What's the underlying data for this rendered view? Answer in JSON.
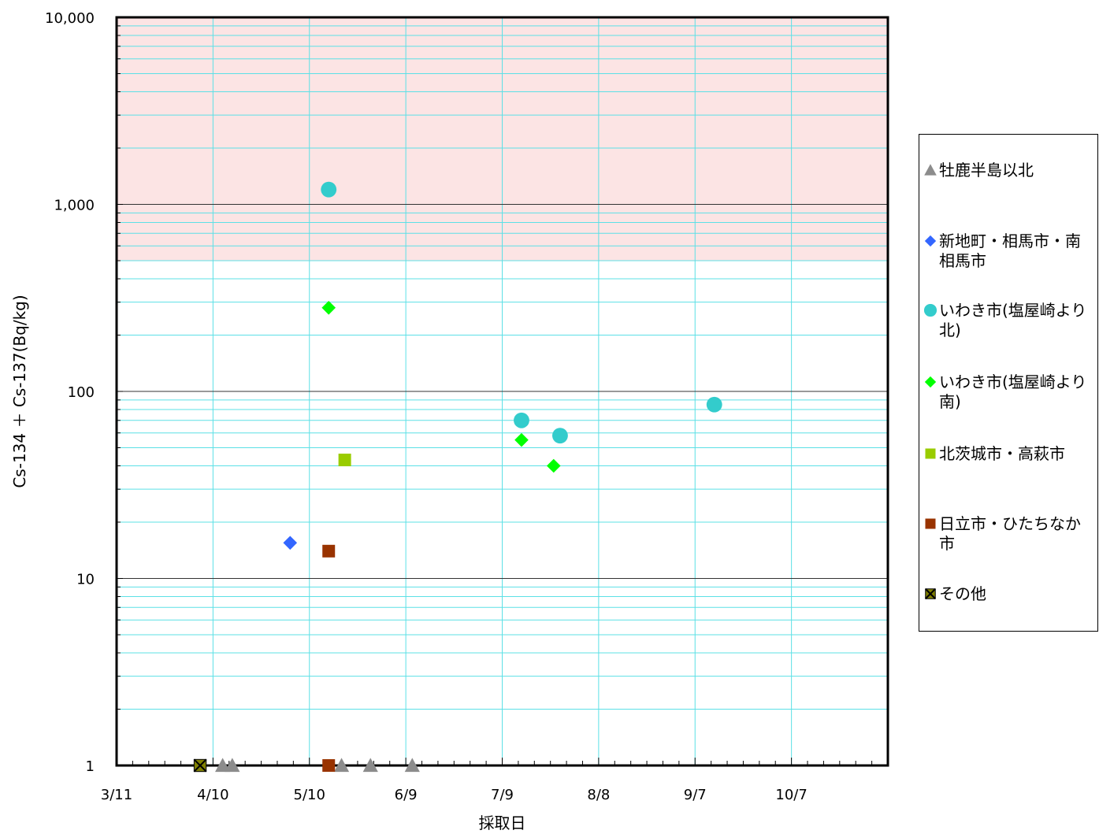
{
  "chart_data": {
    "type": "scatter",
    "xlabel": "採取日",
    "ylabel": "Cs-134 ＋ Cs-137(Bq/kg)",
    "y_scale": "log",
    "ylim": [
      1,
      10000
    ],
    "xlim": [
      "2011-03-11",
      "2011-11-06"
    ],
    "x_ticks": [
      "3/11",
      "4/10",
      "5/10",
      "6/9",
      "7/9",
      "8/8",
      "9/7",
      "10/7"
    ],
    "y_ticks": [
      "1",
      "10",
      "100",
      "1,000",
      "10,000"
    ],
    "y_tick_values": [
      1,
      10,
      100,
      1000,
      10000
    ],
    "grid": true,
    "shaded_region": {
      "y_from": 500,
      "y_to": 10000,
      "color": "#fce4e4"
    },
    "legend_position": "right",
    "series": [
      {
        "name": "牡鹿半島以北",
        "marker": "triangle",
        "color": "#8c8c8c",
        "points": [
          [
            "2011-04-13",
            1
          ],
          [
            "2011-04-16",
            1
          ],
          [
            "2011-05-20",
            1
          ],
          [
            "2011-05-29",
            1
          ],
          [
            "2011-06-11",
            1
          ]
        ]
      },
      {
        "name": "新地町・相馬市・南相馬市",
        "marker": "diamond",
        "color": "#3366ff",
        "points": [
          [
            "2011-05-04",
            15.5
          ]
        ]
      },
      {
        "name": "いわき市(塩屋崎より北)",
        "marker": "circle",
        "color": "#33cccc",
        "points": [
          [
            "2011-05-16",
            1200
          ],
          [
            "2011-07-15",
            70
          ],
          [
            "2011-07-27",
            58
          ],
          [
            "2011-09-13",
            85
          ]
        ]
      },
      {
        "name": "いわき市(塩屋崎より南)",
        "marker": "diamond",
        "color": "#00ff00",
        "points": [
          [
            "2011-05-16",
            280
          ],
          [
            "2011-07-15",
            55
          ],
          [
            "2011-07-25",
            40
          ]
        ]
      },
      {
        "name": "北茨城市・高萩市",
        "marker": "square",
        "color": "#99cc00",
        "points": [
          [
            "2011-05-21",
            43
          ]
        ]
      },
      {
        "name": "日立市・ひたちなか市",
        "marker": "square",
        "color": "#993300",
        "points": [
          [
            "2011-05-16",
            14
          ],
          [
            "2011-05-16",
            1
          ]
        ]
      },
      {
        "name": "その他",
        "marker": "x-square",
        "color": "#808000",
        "points": [
          [
            "2011-04-06",
            1
          ]
        ]
      }
    ]
  }
}
